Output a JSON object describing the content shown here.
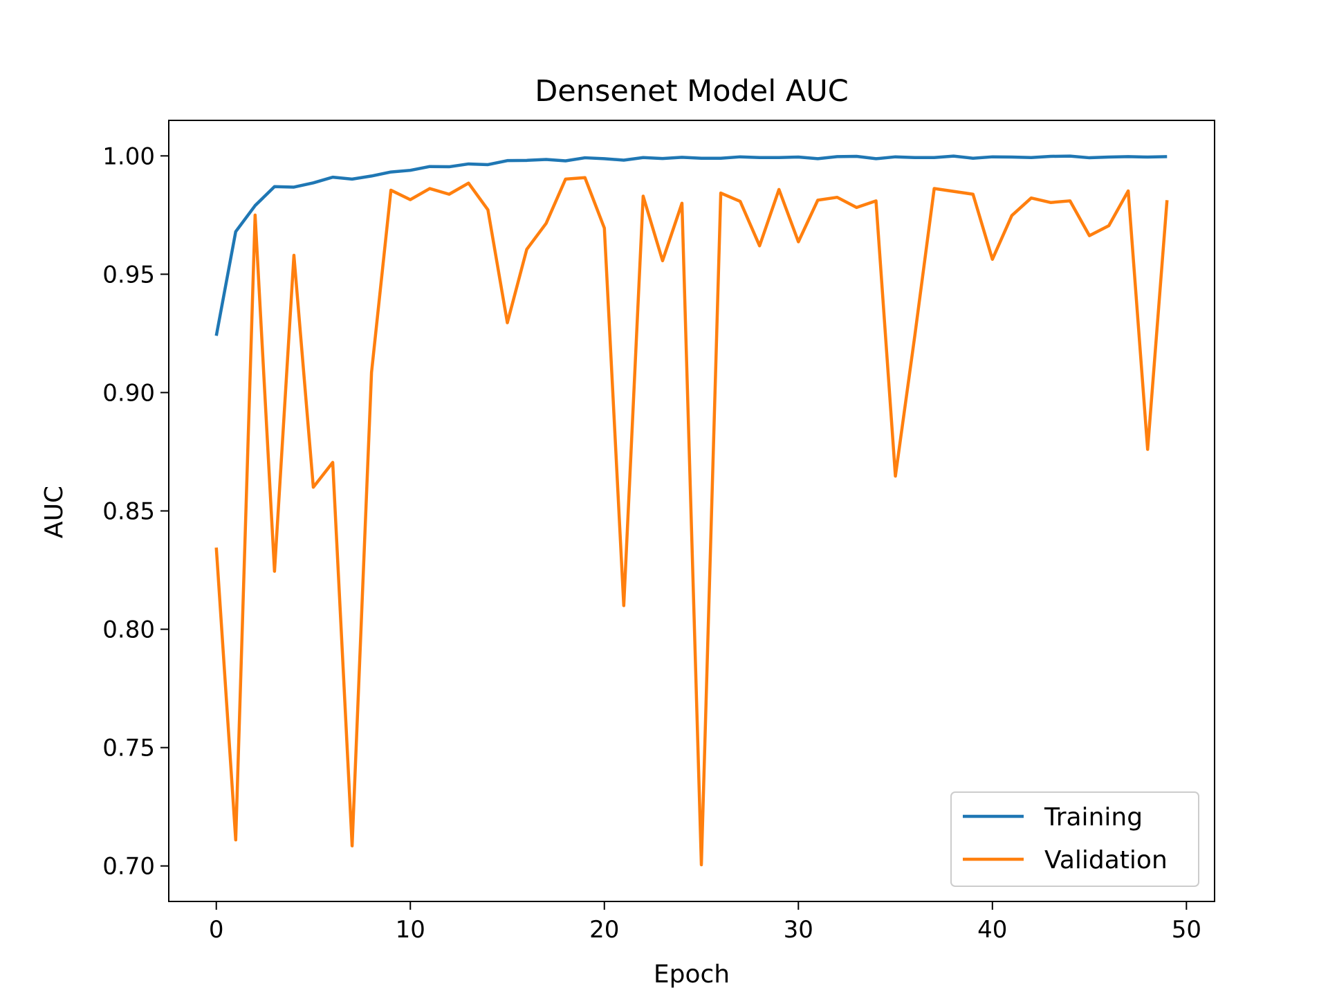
{
  "chart_data": {
    "type": "line",
    "title": "Densenet Model AUC",
    "xlabel": "Epoch",
    "ylabel": "AUC",
    "xlim": [
      -2.45,
      51.45
    ],
    "ylim": [
      0.685,
      1.015
    ],
    "xticks": [
      0,
      10,
      20,
      30,
      40,
      50
    ],
    "xtick_labels": [
      "0",
      "10",
      "20",
      "30",
      "40",
      "50"
    ],
    "yticks": [
      0.7,
      0.75,
      0.8,
      0.85,
      0.9,
      0.95,
      1.0
    ],
    "ytick_labels": [
      "0.70",
      "0.75",
      "0.80",
      "0.85",
      "0.90",
      "0.95",
      "1.00"
    ],
    "grid": false,
    "legend_position": "lower-right",
    "x": [
      0,
      1,
      2,
      3,
      4,
      5,
      6,
      7,
      8,
      9,
      10,
      11,
      12,
      13,
      14,
      15,
      16,
      17,
      18,
      19,
      20,
      21,
      22,
      23,
      24,
      25,
      26,
      27,
      28,
      29,
      30,
      31,
      32,
      33,
      34,
      35,
      36,
      37,
      38,
      39,
      40,
      41,
      42,
      43,
      44,
      45,
      46,
      47,
      48,
      49
    ],
    "series": [
      {
        "name": "Training",
        "color": "#1f77b4",
        "values": [
          0.924,
          0.968,
          0.979,
          0.987,
          0.9868,
          0.9886,
          0.991,
          0.9902,
          0.9915,
          0.9932,
          0.9939,
          0.9955,
          0.9954,
          0.9966,
          0.9963,
          0.998,
          0.9981,
          0.9985,
          0.9979,
          0.9992,
          0.9988,
          0.9982,
          0.9993,
          0.9989,
          0.9994,
          0.999,
          0.999,
          0.9996,
          0.9993,
          0.9993,
          0.9995,
          0.9988,
          0.9997,
          0.9998,
          0.9988,
          0.9996,
          0.9993,
          0.9993,
          0.9999,
          0.999,
          0.9996,
          0.9995,
          0.9993,
          0.9998,
          0.9999,
          0.9992,
          0.9995,
          0.9997,
          0.9995,
          0.9997
        ]
      },
      {
        "name": "Validation",
        "color": "#ff7f0e",
        "values": [
          0.8345,
          0.711,
          0.975,
          0.8245,
          0.958,
          0.86,
          0.8705,
          0.7085,
          0.9085,
          0.9855,
          0.9815,
          0.9862,
          0.9838,
          0.9885,
          0.9772,
          0.9295,
          0.9605,
          0.9715,
          0.9902,
          0.9908,
          0.9695,
          0.81,
          0.983,
          0.9557,
          0.98,
          0.7005,
          0.9843,
          0.9808,
          0.962,
          0.9858,
          0.9637,
          0.9813,
          0.9825,
          0.9782,
          0.981,
          0.8647,
          0.924,
          0.9862,
          0.985,
          0.9838,
          0.9563,
          0.9748,
          0.9822,
          0.9803,
          0.981,
          0.9663,
          0.9705,
          0.9852,
          0.876,
          0.9813
        ]
      }
    ]
  }
}
